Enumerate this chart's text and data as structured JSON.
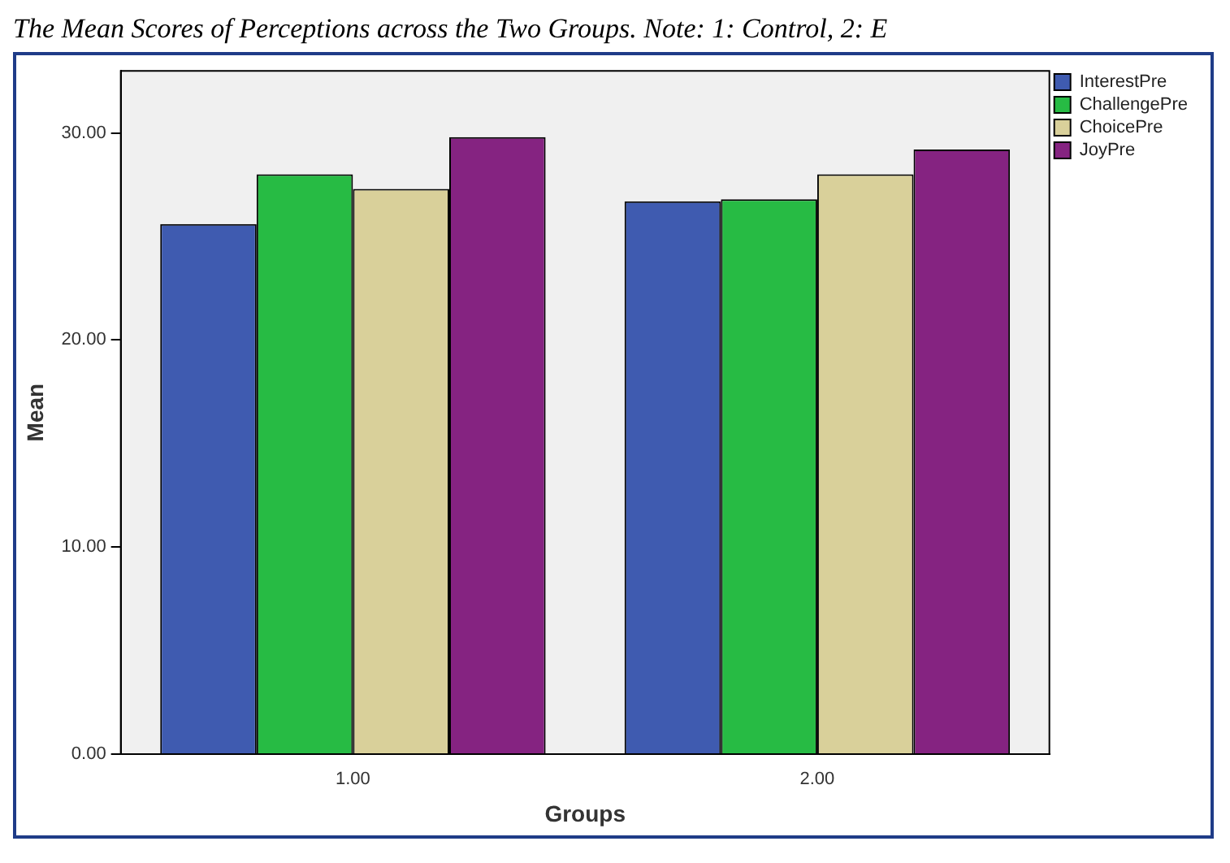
{
  "chart_data": {
    "type": "bar",
    "title": "The Mean Scores of Perceptions across the Two Groups. Note: 1: Control, 2: E",
    "xlabel": "Groups",
    "ylabel": "Mean",
    "categories": [
      "1.00",
      "2.00"
    ],
    "series": [
      {
        "name": "InterestPre",
        "color": "#3f5bb0",
        "values": [
          25.6,
          26.7
        ]
      },
      {
        "name": "ChallengePre",
        "color": "#27bb44",
        "values": [
          28.0,
          26.8
        ]
      },
      {
        "name": "ChoicePre",
        "color": "#d9d09a",
        "values": [
          27.3,
          28.0
        ]
      },
      {
        "name": "JoyPre",
        "color": "#852381",
        "values": [
          29.8,
          29.2
        ]
      }
    ],
    "ylim": [
      0,
      33
    ],
    "yticks": [
      {
        "value": 0,
        "label": "0.00"
      },
      {
        "value": 10,
        "label": "10.00"
      },
      {
        "value": 20,
        "label": "20.00"
      },
      {
        "value": 30,
        "label": "30.00"
      }
    ],
    "grid": false,
    "legend": "top right"
  }
}
